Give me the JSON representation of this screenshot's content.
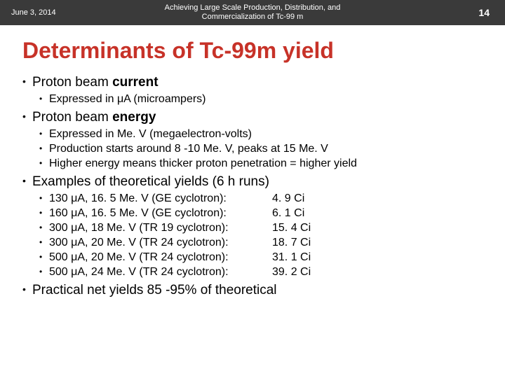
{
  "header": {
    "date": "June 3, 2014",
    "title": "Achieving Large Scale Production, Distribution, and\nCommercialization of Tc-99 m",
    "pageNumber": "14"
  },
  "title": "Determinants of Tc-99m yield",
  "section1": {
    "heading_prefix": "Proton beam ",
    "heading_bold": "current",
    "sub1": "Expressed in μA (microampers)"
  },
  "section2": {
    "heading_prefix": "Proton beam ",
    "heading_bold": "energy",
    "sub1": "Expressed in Me. V (megaelectron-volts)",
    "sub2": "Production starts around 8 -10 Me. V, peaks at 15 Me. V",
    "sub3": "Higher energy means thicker proton penetration = higher yield"
  },
  "section3": {
    "heading": "Examples of theoretical yields (6 h runs)",
    "rows": [
      {
        "label": "130 μA, 16. 5 Me. V (GE cyclotron):",
        "value": "4. 9 Ci"
      },
      {
        "label": "160 μA, 16. 5 Me. V (GE cyclotron):",
        "value": "6. 1 Ci"
      },
      {
        "label": "300 μA, 18 Me. V (TR 19 cyclotron):",
        "value": "15. 4 Ci"
      },
      {
        "label": "300 μA, 20 Me. V (TR 24 cyclotron):",
        "value": "18. 7 Ci"
      },
      {
        "label": "500 μA, 20 Me. V (TR 24 cyclotron):",
        "value": "31. 1 Ci"
      },
      {
        "label": "500 μA, 24 Me. V (TR 24 cyclotron):",
        "value": "39. 2 Ci"
      }
    ]
  },
  "section4": {
    "heading": "Practical net yields 85 -95% of theoretical"
  }
}
